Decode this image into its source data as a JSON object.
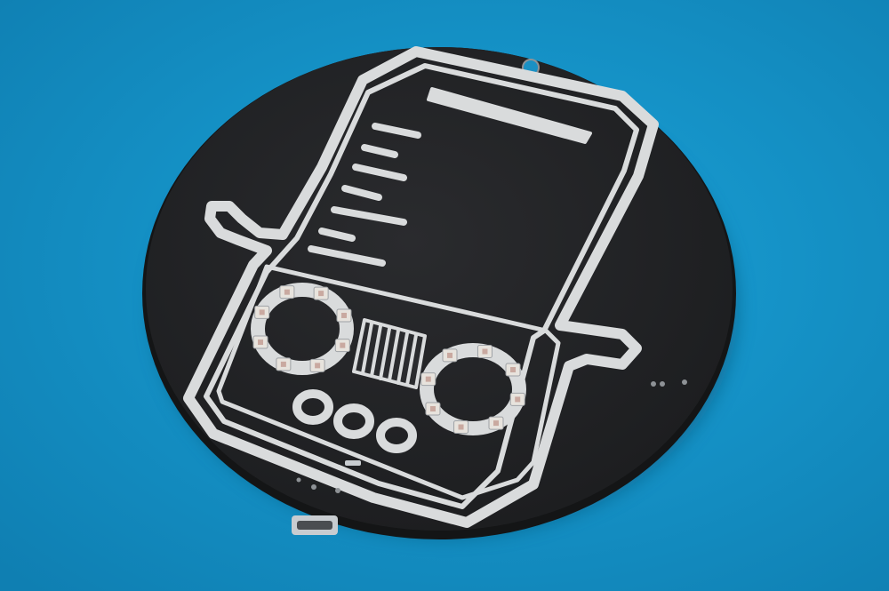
{
  "scene": {
    "subject": "circular-pcb-badge",
    "colors": {
      "background": "#1596cc",
      "background_dark": "#0e78a8",
      "board": "#222325",
      "board_edge": "#141516",
      "silkscreen": "#d9dbdc",
      "silkscreen_shadow": "#9ea2a6",
      "led_body": "#e7e3dd",
      "led_die": "#c9a9a0",
      "usb_metal": "#c8ccd0"
    },
    "counts": {
      "leds_left_ring": 8,
      "leds_right_ring": 8,
      "round_pads": 3,
      "scale_ticks": 6
    }
  }
}
